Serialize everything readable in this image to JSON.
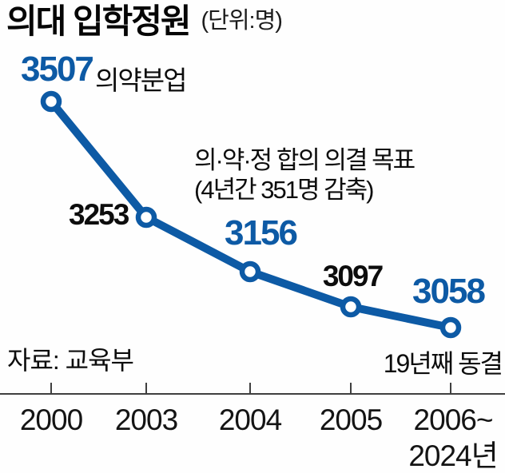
{
  "header": {
    "title": "의대 입학정원",
    "unit_note": "(단위:명)"
  },
  "source_note": "자료: 교육부",
  "colors": {
    "accent_blue": "#0d5aa5",
    "label_black": "#0d0d0d",
    "axis_gray": "#3f3f3f",
    "background": "#fefefe"
  },
  "chart_data": {
    "type": "line",
    "title": "의대 입학정원",
    "unit": "명",
    "categories": [
      "2000",
      "2003",
      "2004",
      "2005",
      "2006~2024"
    ],
    "values": [
      3507,
      3253,
      3156,
      3097,
      3058
    ],
    "value_labels": [
      "3507",
      "3253",
      "3156",
      "3097",
      "3058"
    ],
    "x_tick_labels": [
      [
        "2000"
      ],
      [
        "2003"
      ],
      [
        "2004"
      ],
      [
        "2005"
      ],
      [
        "2006~",
        "2024년"
      ]
    ],
    "annotations": {
      "point1_note": "의약분업",
      "agreement_note_line1": "의·약·정 합의 의결 목표",
      "agreement_note_line2": "(4년간 351명 감축)",
      "freeze_note": "19년째 동결"
    },
    "source": "자료: 교육부",
    "ylim": [
      3000,
      3600
    ],
    "legend": false,
    "grid": false,
    "marker_style": "open-circle",
    "line_color": "#0d5aa5"
  }
}
